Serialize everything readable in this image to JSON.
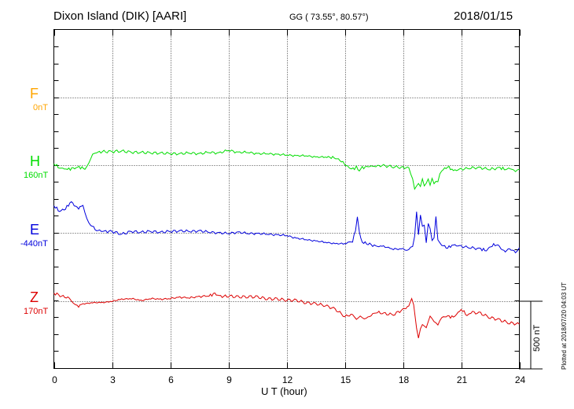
{
  "header": {
    "station": "Dixon Island (DIK)  [AARI]",
    "coords": "GG ( 73.55°,  80.57°)",
    "date": "2018/01/15"
  },
  "footer": {
    "xlabel": "U T (hour)",
    "scale_label": "500 nT",
    "plotted": "Plotted at 2018/07/20 04:03 UT"
  },
  "chart_data": {
    "type": "line",
    "title": "Dixon Island (DIK)  [AARI]",
    "xlabel": "U T (hour)",
    "ylabel": "",
    "xlim": [
      0,
      24
    ],
    "xticks": [
      0,
      3,
      6,
      9,
      12,
      15,
      18,
      21,
      24
    ],
    "xtick_labels": [
      "0",
      "3",
      "6",
      "9",
      "12",
      "15",
      "18",
      "21",
      "24"
    ],
    "grid": true,
    "scale_bar_nT": 500,
    "channels": [
      {
        "letter": "F",
        "baseline_label": "0nT",
        "color": "#ffa500"
      },
      {
        "letter": "H",
        "baseline_label": "160nT",
        "color": "#00dd00"
      },
      {
        "letter": "E",
        "baseline_label": "-440nT",
        "color": "#0000dd"
      },
      {
        "letter": "Z",
        "baseline_label": "170nT",
        "color": "#dd0000"
      }
    ],
    "series": [
      {
        "name": "H",
        "color": "#00dd00",
        "unit": "nT (relative to baseline)",
        "x": [
          0,
          0.3,
          0.7,
          1.0,
          1.3,
          1.6,
          1.8,
          2.0,
          2.2,
          2.5,
          3.0,
          3.5,
          4.0,
          4.5,
          5.0,
          5.5,
          6.0,
          6.5,
          7.0,
          7.5,
          8.0,
          8.5,
          9.0,
          9.5,
          10.0,
          10.5,
          11.0,
          11.5,
          12.0,
          12.5,
          13.0,
          13.5,
          14.0,
          14.3,
          14.6,
          14.9,
          15.2,
          15.5,
          15.6,
          15.75,
          15.9,
          16.2,
          16.6,
          17.0,
          17.5,
          18.0,
          18.3,
          18.5,
          18.6,
          18.7,
          18.8,
          18.9,
          19.0,
          19.1,
          19.2,
          19.3,
          19.4,
          19.5,
          19.6,
          19.7,
          19.8,
          19.9,
          20.0,
          20.3,
          20.6,
          21.0,
          21.5,
          22.0,
          22.5,
          23.0,
          23.3,
          23.6,
          23.8,
          24.0
        ],
        "values": [
          10,
          -20,
          -30,
          -25,
          -15,
          -25,
          25,
          90,
          95,
          100,
          100,
          105,
          95,
          95,
          90,
          90,
          85,
          85,
          90,
          85,
          95,
          90,
          110,
          95,
          95,
          85,
          85,
          80,
          75,
          70,
          70,
          60,
          60,
          60,
          50,
          20,
          -20,
          -30,
          -10,
          -40,
          -20,
          -10,
          -5,
          -5,
          -10,
          -20,
          -20,
          -100,
          -180,
          -160,
          -140,
          -160,
          -100,
          -150,
          -130,
          -100,
          -150,
          -100,
          -140,
          -120,
          -120,
          -60,
          -40,
          -10,
          -40,
          -30,
          -20,
          -20,
          -30,
          -20,
          -30,
          -20,
          -40,
          -30
        ]
      },
      {
        "name": "E",
        "color": "#0000dd",
        "unit": "nT (relative to baseline)",
        "x": [
          0,
          0.3,
          0.6,
          0.9,
          1.2,
          1.5,
          1.7,
          1.9,
          2.2,
          2.6,
          3.0,
          3.5,
          4.0,
          4.5,
          5.0,
          5.5,
          6.0,
          6.5,
          7.0,
          7.5,
          8.0,
          8.5,
          9.0,
          9.5,
          10.0,
          10.5,
          11.0,
          11.5,
          12.0,
          12.5,
          13.0,
          13.5,
          14.0,
          14.5,
          15.0,
          15.4,
          15.55,
          15.65,
          15.75,
          15.9,
          16.2,
          16.6,
          17.0,
          17.5,
          18.0,
          18.2,
          18.4,
          18.5,
          18.6,
          18.7,
          18.8,
          18.9,
          19.0,
          19.1,
          19.2,
          19.3,
          19.4,
          19.5,
          19.6,
          19.7,
          19.8,
          19.9,
          20.0,
          20.3,
          20.6,
          21.0,
          21.5,
          22.0,
          22.3,
          22.6,
          22.9,
          23.2,
          23.5,
          23.8,
          24.0
        ],
        "values": [
          200,
          160,
          180,
          230,
          180,
          200,
          110,
          60,
          20,
          10,
          10,
          -10,
          10,
          5,
          10,
          5,
          10,
          15,
          10,
          15,
          5,
          0,
          -5,
          5,
          -5,
          -5,
          -10,
          -15,
          -20,
          -40,
          -50,
          -60,
          -70,
          -80,
          -80,
          -60,
          10,
          110,
          0,
          -70,
          -80,
          -100,
          -100,
          -120,
          -120,
          -130,
          -100,
          -100,
          -30,
          150,
          -20,
          130,
          50,
          60,
          -70,
          70,
          30,
          -60,
          -40,
          120,
          -50,
          -70,
          -90,
          -110,
          -90,
          -100,
          -110,
          -120,
          -130,
          -90,
          -90,
          -140,
          -120,
          -140,
          -110
        ]
      },
      {
        "name": "Z",
        "color": "#dd0000",
        "unit": "nT (relative to baseline)",
        "x": [
          0,
          0.4,
          0.8,
          1.0,
          1.2,
          1.5,
          2.0,
          2.5,
          3.0,
          3.5,
          4.0,
          4.5,
          5.0,
          5.5,
          6.0,
          6.5,
          7.0,
          7.5,
          8.0,
          8.3,
          8.6,
          9.0,
          9.5,
          10.0,
          10.5,
          11.0,
          11.5,
          12.0,
          12.5,
          13.0,
          13.5,
          14.0,
          14.5,
          15.0,
          15.4,
          15.6,
          15.8,
          16.0,
          16.2,
          16.6,
          17.0,
          17.5,
          18.0,
          18.3,
          18.45,
          18.55,
          18.7,
          18.8,
          18.9,
          19.0,
          19.2,
          19.4,
          19.6,
          19.8,
          20.0,
          20.3,
          20.6,
          21.0,
          21.3,
          21.5,
          22.0,
          22.5,
          23.0,
          23.5,
          24.0
        ],
        "values": [
          60,
          40,
          20,
          -20,
          -40,
          -20,
          -10,
          -10,
          0,
          15,
          20,
          5,
          20,
          15,
          20,
          30,
          25,
          35,
          40,
          55,
          35,
          40,
          30,
          35,
          30,
          20,
          15,
          10,
          5,
          -10,
          -20,
          -30,
          -60,
          -110,
          -100,
          -140,
          -120,
          -140,
          -120,
          -80,
          -90,
          -100,
          -60,
          -40,
          30,
          -20,
          -200,
          -270,
          -200,
          -170,
          -190,
          -100,
          -140,
          -170,
          -120,
          -110,
          -120,
          -60,
          -100,
          -80,
          -90,
          -120,
          -140,
          -160,
          -170
        ]
      }
    ]
  }
}
